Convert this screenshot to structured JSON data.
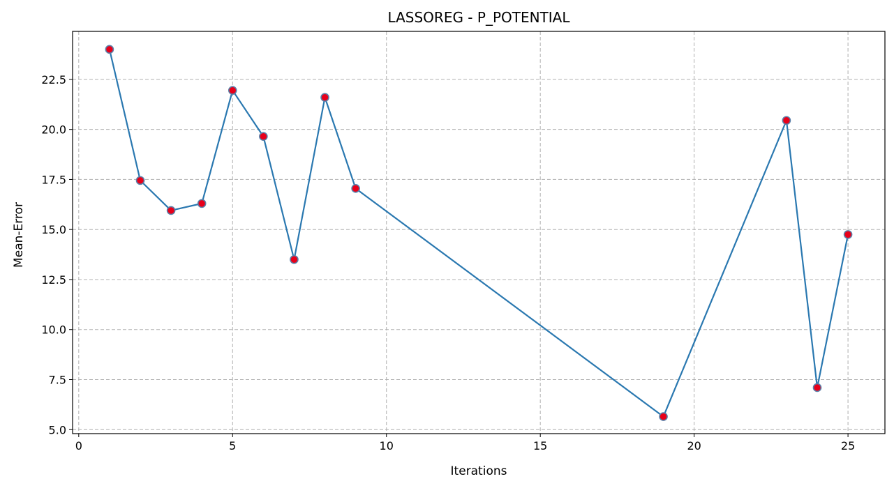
{
  "chart_data": {
    "type": "line",
    "title": "LASSOREG - P_POTENTIAL",
    "xlabel": "Iterations",
    "ylabel": "Mean-Error",
    "x": [
      1,
      2,
      3,
      4,
      5,
      6,
      7,
      8,
      9,
      19,
      23,
      24,
      25
    ],
    "series": [
      {
        "values": [
          24.0,
          17.45,
          15.95,
          16.3,
          21.95,
          19.65,
          13.5,
          21.6,
          17.05,
          5.65,
          20.45,
          7.1,
          14.75
        ]
      }
    ],
    "xlim": [
      -0.2,
      26.2
    ],
    "ylim": [
      4.8,
      24.9
    ],
    "xticks": [
      0,
      5,
      10,
      15,
      20,
      25
    ],
    "xtick_labels": [
      "0",
      "5",
      "10",
      "15",
      "20",
      "25"
    ],
    "yticks": [
      5.0,
      7.5,
      10.0,
      12.5,
      15.0,
      17.5,
      20.0,
      22.5
    ],
    "ytick_labels": [
      "5.0",
      "7.5",
      "10.0",
      "12.5",
      "15.0",
      "17.5",
      "20.0",
      "22.5"
    ],
    "grid": true,
    "line_color": "#2a78b0",
    "marker_fill": "#e8001a",
    "marker_edge": "#5b7fa8"
  }
}
